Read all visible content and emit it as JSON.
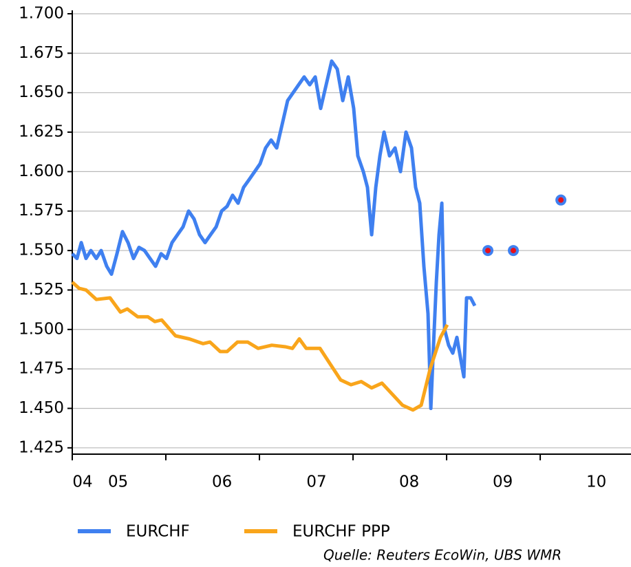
{
  "chart_data": {
    "type": "line",
    "source": "Quelle: Reuters EcoWin, UBS WMR",
    "xlim": [
      2005,
      2010.97
    ],
    "ylim": [
      1.421,
      1.7
    ],
    "yticks": [
      1.425,
      {
        "value": 1.45,
        "label": "1.450"
      },
      1.475,
      {
        "value": 1.5,
        "label": "1.500"
      },
      1.525,
      {
        "value": 1.55,
        "label": "1.550"
      },
      1.575,
      {
        "value": 1.6,
        "label": "1.600"
      },
      1.625,
      {
        "value": 1.65,
        "label": "1.650"
      },
      1.675,
      {
        "value": 1.7,
        "label": "1.700"
      }
    ],
    "xticks": [
      {
        "value": 2005.11,
        "label": "04"
      },
      {
        "value": 2005.49,
        "label": "05"
      },
      {
        "value": 2006.6,
        "label": "06"
      },
      {
        "value": 2007.61,
        "label": "07"
      },
      {
        "value": 2008.6,
        "label": "08"
      },
      {
        "value": 2009.6,
        "label": "09"
      },
      {
        "value": 2010.6,
        "label": "10"
      }
    ],
    "minor_xticks": [
      2005,
      2006,
      2007,
      2008,
      2009,
      2010
    ],
    "grid": true,
    "series": [
      {
        "name": "EURCHF",
        "color": "#3f80f0",
        "x": [
          2005.0,
          2005.051,
          2005.096,
          2005.147,
          2005.199,
          2005.257,
          2005.309,
          2005.368,
          2005.419,
          2005.478,
          2005.537,
          2005.596,
          2005.654,
          2005.713,
          2005.772,
          2005.831,
          2005.89,
          2005.949,
          2006.007,
          2006.066,
          2006.125,
          2006.184,
          2006.243,
          2006.301,
          2006.36,
          2006.419,
          2006.478,
          2006.537,
          2006.596,
          2006.654,
          2006.713,
          2006.772,
          2006.831,
          2006.89,
          2006.949,
          2007.007,
          2007.066,
          2007.125,
          2007.184,
          2007.243,
          2007.301,
          2007.36,
          2007.419,
          2007.478,
          2007.537,
          2007.596,
          2007.654,
          2007.713,
          2007.772,
          2007.831,
          2007.89,
          2007.949,
          2008.007,
          2008.051,
          2008.11,
          2008.154,
          2008.199,
          2008.243,
          2008.287,
          2008.331,
          2008.39,
          2008.449,
          2008.507,
          2008.566,
          2008.625,
          2008.669,
          2008.713,
          2008.757,
          2008.801,
          2008.831,
          2008.86,
          2008.89,
          2008.919,
          2008.949,
          2008.978,
          2009.022,
          2009.066,
          2009.11,
          2009.154,
          2009.184,
          2009.213,
          2009.257,
          2009.301
        ],
        "values": [
          1.548,
          1.545,
          1.555,
          1.545,
          1.55,
          1.545,
          1.55,
          1.54,
          1.535,
          1.548,
          1.562,
          1.555,
          1.545,
          1.552,
          1.55,
          1.545,
          1.54,
          1.548,
          1.545,
          1.555,
          1.56,
          1.565,
          1.575,
          1.57,
          1.56,
          1.555,
          1.56,
          1.565,
          1.575,
          1.578,
          1.585,
          1.58,
          1.59,
          1.595,
          1.6,
          1.605,
          1.615,
          1.62,
          1.615,
          1.63,
          1.645,
          1.65,
          1.655,
          1.66,
          1.655,
          1.66,
          1.64,
          1.655,
          1.67,
          1.665,
          1.645,
          1.66,
          1.64,
          1.61,
          1.6,
          1.59,
          1.56,
          1.59,
          1.61,
          1.625,
          1.61,
          1.615,
          1.6,
          1.625,
          1.615,
          1.59,
          1.58,
          1.54,
          1.51,
          1.45,
          1.49,
          1.53,
          1.56,
          1.58,
          1.5,
          1.49,
          1.485,
          1.495,
          1.48,
          1.47,
          1.52,
          1.52,
          1.515
        ]
      },
      {
        "name": "EURCHF PPP",
        "color": "#f9a51b",
        "x": [
          2005.0,
          2005.074,
          2005.147,
          2005.257,
          2005.404,
          2005.515,
          2005.588,
          2005.699,
          2005.809,
          2005.882,
          2005.956,
          2006.103,
          2006.25,
          2006.397,
          2006.471,
          2006.581,
          2006.654,
          2006.765,
          2006.875,
          2006.985,
          2007.132,
          2007.279,
          2007.353,
          2007.426,
          2007.5,
          2007.647,
          2007.757,
          2007.868,
          2007.978,
          2008.088,
          2008.199,
          2008.309,
          2008.419,
          2008.529,
          2008.64,
          2008.728,
          2008.824,
          2008.934,
          2009.007
        ],
        "values": [
          1.53,
          1.526,
          1.525,
          1.519,
          1.52,
          1.511,
          1.513,
          1.508,
          1.508,
          1.505,
          1.506,
          1.496,
          1.494,
          1.491,
          1.492,
          1.486,
          1.486,
          1.492,
          1.492,
          1.488,
          1.49,
          1.489,
          1.488,
          1.494,
          1.488,
          1.488,
          1.478,
          1.468,
          1.465,
          1.467,
          1.463,
          1.466,
          1.459,
          1.452,
          1.449,
          1.452,
          1.475,
          1.495,
          1.503
        ]
      }
    ],
    "points": {
      "color": "#3f80f0",
      "center_color": "#e8101a",
      "x": [
        2009.441,
        2009.713,
        2010.221
      ],
      "values": [
        1.55,
        1.55,
        1.582
      ]
    }
  }
}
